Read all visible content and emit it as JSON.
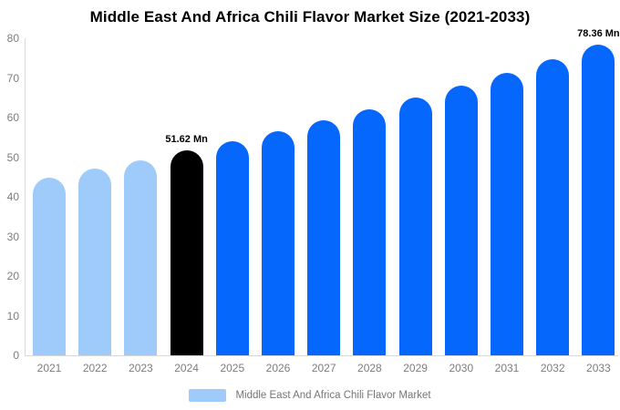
{
  "chart_data": {
    "type": "bar",
    "title": "Middle East And Africa Chili Flavor Market Size (2021-2033)",
    "categories": [
      "2021",
      "2022",
      "2023",
      "2024",
      "2025",
      "2026",
      "2027",
      "2028",
      "2029",
      "2030",
      "2031",
      "2032",
      "2033"
    ],
    "values": [
      44.92,
      47.05,
      49.28,
      51.62,
      54.07,
      56.63,
      59.31,
      62.12,
      65.07,
      68.15,
      71.38,
      74.76,
      78.36
    ],
    "bar_colors": [
      "#9FCBFB",
      "#9FCBFB",
      "#9FCBFB",
      "#000000",
      "#0667FC",
      "#0667FC",
      "#0667FC",
      "#0667FC",
      "#0667FC",
      "#0667FC",
      "#0667FC",
      "#0667FC",
      "#0667FC"
    ],
    "annotations": [
      {
        "category": "2024",
        "text": "51.62 Mn"
      },
      {
        "category": "2033",
        "text": "78.36 Mn"
      }
    ],
    "ylim": [
      0,
      80
    ],
    "yticks": [
      0,
      10,
      20,
      30,
      40,
      50,
      60,
      70,
      80
    ],
    "xlabel": "",
    "ylabel": "",
    "grid": false,
    "legend_label": "Middle East And Africa Chili Flavor Market",
    "legend_position": "bottom",
    "colors": {
      "historical_bar": "#9FCBFB",
      "base_year_bar": "#000000",
      "forecast_bar": "#0667FC",
      "axis_line": "#D9D9D9",
      "tick_text": "#7D7D7D",
      "legend_text": "#757575",
      "title_text": "#000000",
      "background": "#FFFFFF"
    }
  }
}
